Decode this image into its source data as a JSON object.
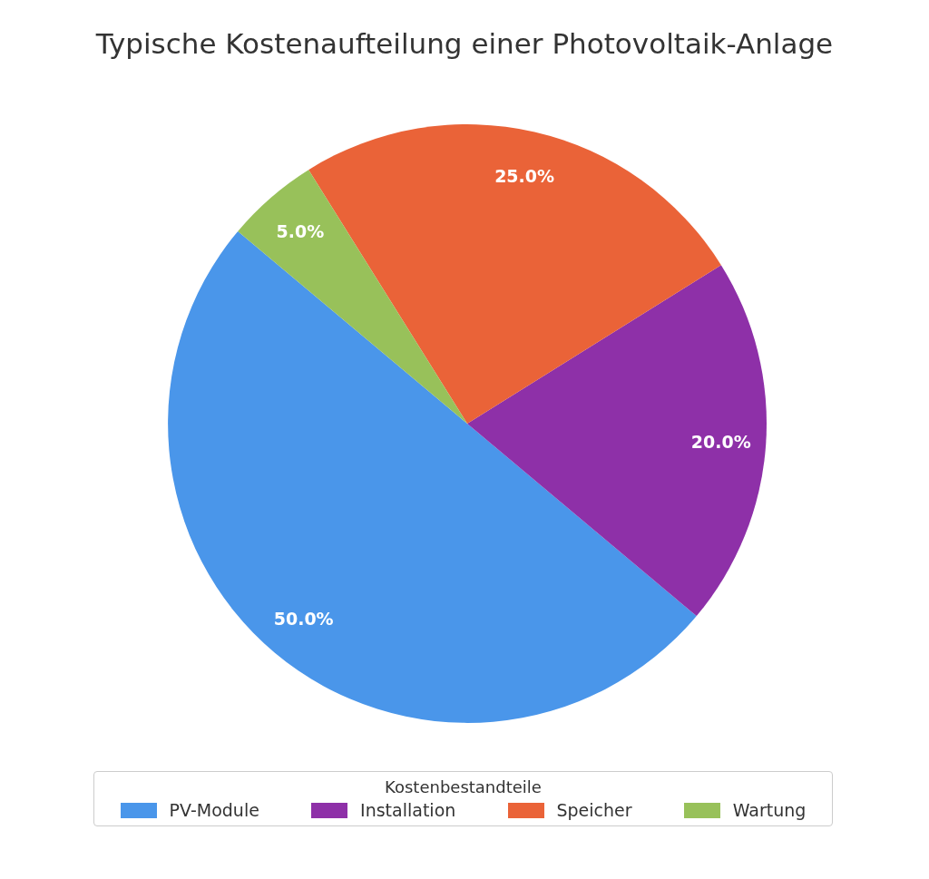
{
  "chart_data": {
    "type": "pie",
    "title": "Typische Kostenaufteilung einer Photovoltaik-Anlage",
    "legend_title": "Kostenbestandteile",
    "legend": "bottom",
    "categories": [
      "PV-Module",
      "Installation",
      "Speicher",
      "Wartung"
    ],
    "values": [
      50,
      20,
      25,
      5
    ],
    "value_labels": [
      "50.0%",
      "20.0%",
      "25.0%",
      "5.0%"
    ],
    "colors": [
      "#4a96ea",
      "#8e30a8",
      "#ea6338",
      "#98c15a"
    ]
  }
}
